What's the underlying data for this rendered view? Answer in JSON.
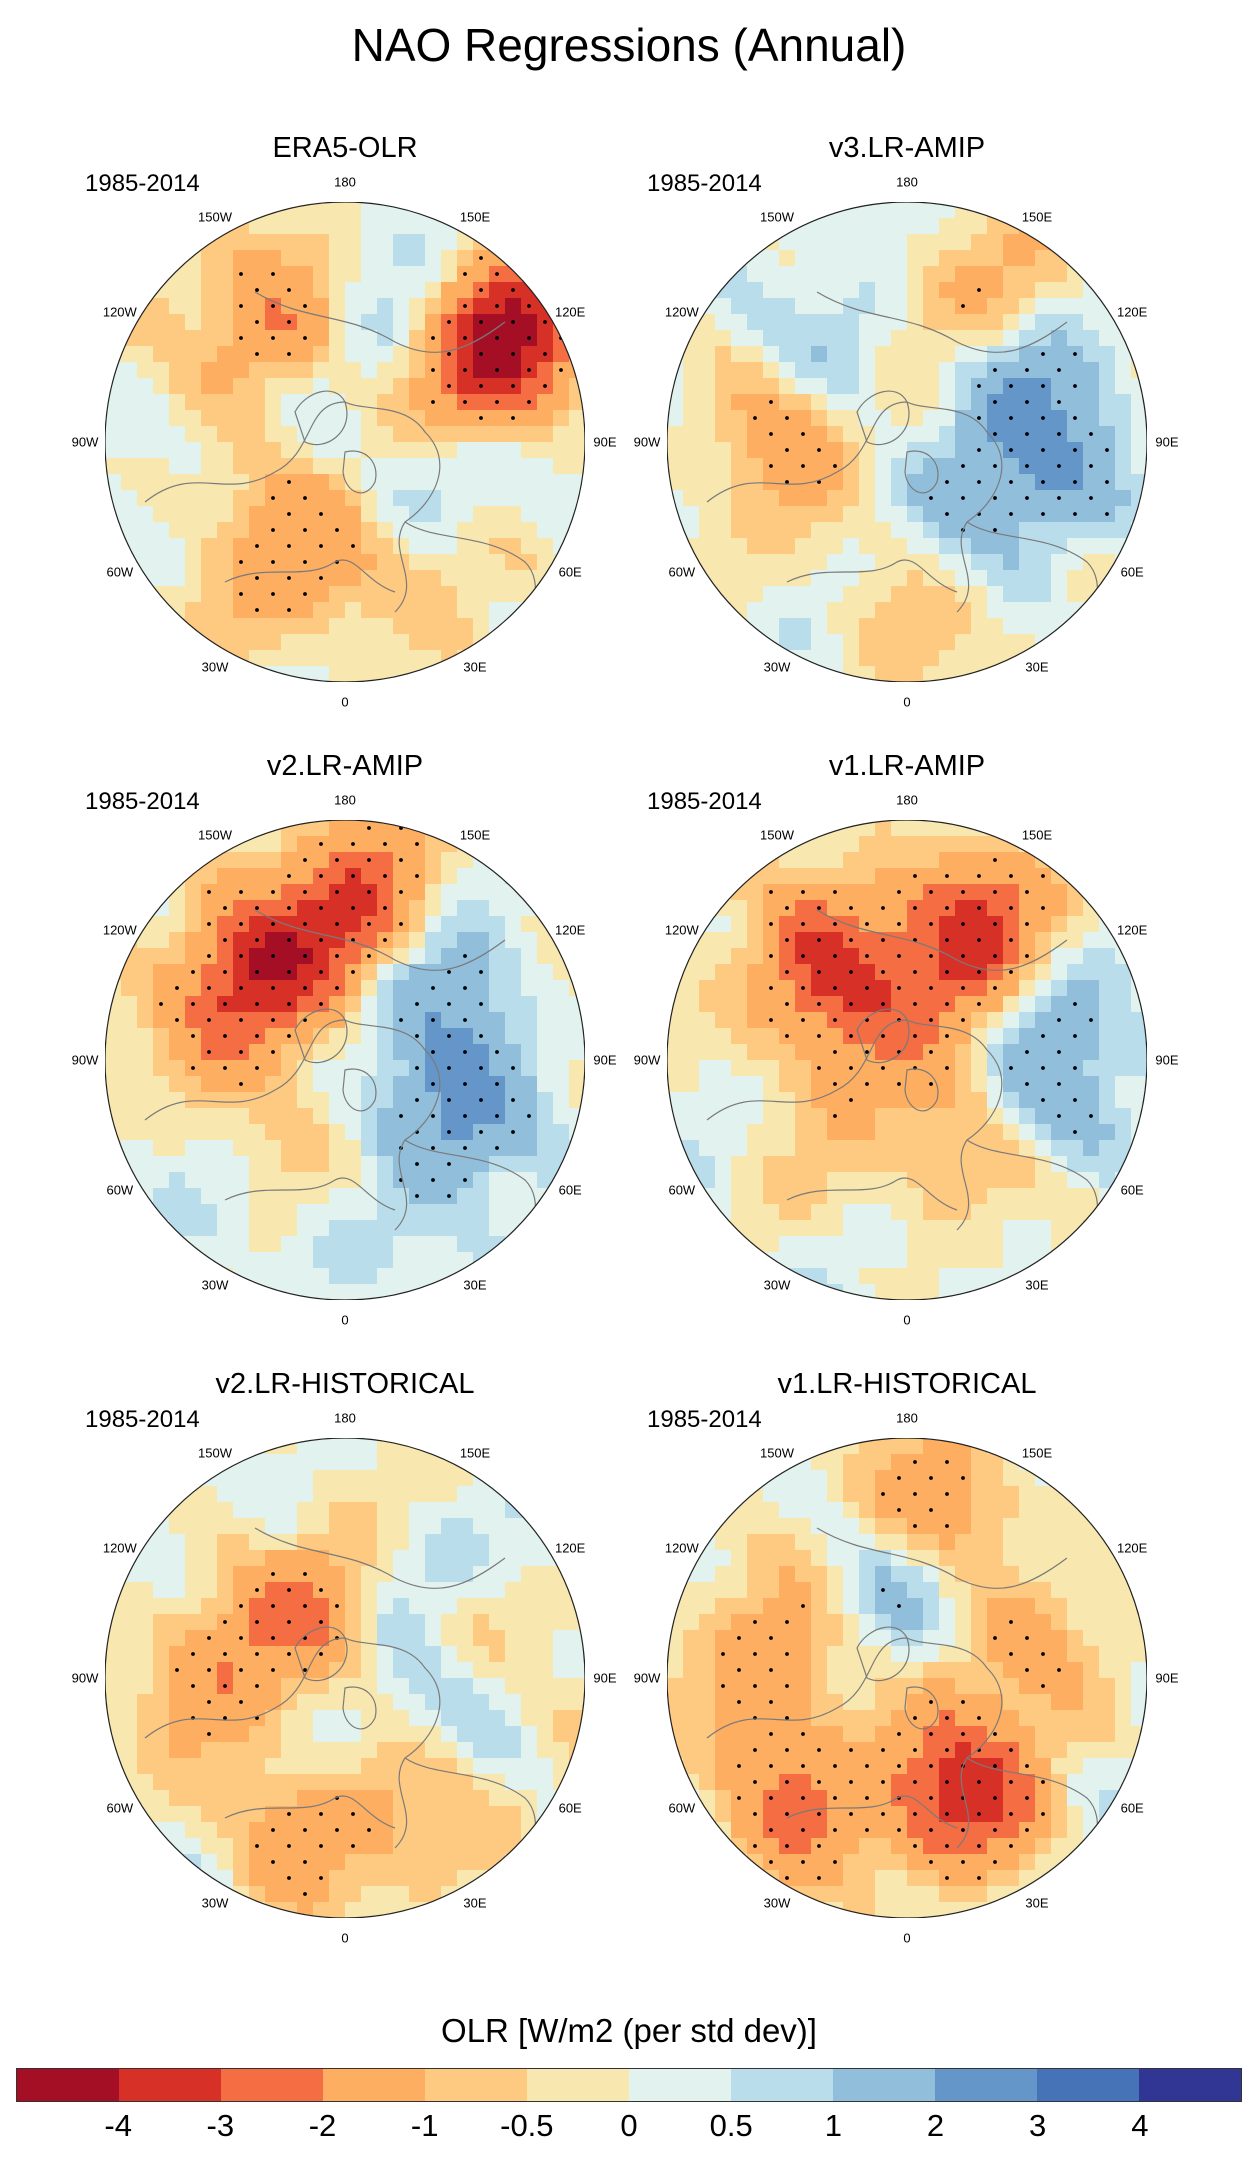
{
  "figure": {
    "title": "NAO Regressions (Annual)",
    "period": "1985-2014"
  },
  "panels": [
    {
      "id": "era5",
      "title": "ERA5-OLR",
      "period": "1985-2014"
    },
    {
      "id": "v3amip",
      "title": "v3.LR-AMIP",
      "period": "1985-2014"
    },
    {
      "id": "v2amip",
      "title": "v2.LR-AMIP",
      "period": "1985-2014"
    },
    {
      "id": "v1amip",
      "title": "v1.LR-AMIP",
      "period": "1985-2014"
    },
    {
      "id": "v2hist",
      "title": "v2.LR-HISTORICAL",
      "period": "1985-2014"
    },
    {
      "id": "v1hist",
      "title": "v1.LR-HISTORICAL",
      "period": "1985-2014"
    }
  ],
  "longitude_labels": [
    "180",
    "150E",
    "120E",
    "90E",
    "60E",
    "30E",
    "0",
    "30W",
    "60W",
    "90W",
    "120W",
    "150W"
  ],
  "colorbar": {
    "title": "OLR [W/m2 (per std dev)]",
    "ticks": [
      "-4",
      "-3",
      "-2",
      "-1",
      "-0.5",
      "0",
      "0.5",
      "1",
      "2",
      "3",
      "4"
    ],
    "colors": [
      "#a50f26",
      "#d73027",
      "#f46d43",
      "#fdae61",
      "#fec980",
      "#f8e8b0",
      "#e2f3ef",
      "#b9ddeb",
      "#91bfdb",
      "#6496c9",
      "#4672b8",
      "#313695"
    ]
  },
  "chart_data": {
    "type": "heatmap",
    "projection": "north polar stereographic",
    "variable": "OLR regression on NAO index",
    "units": "W/m2 (per std dev)",
    "levels": [
      -4,
      -3,
      -2,
      -1,
      -0.5,
      0,
      0.5,
      1,
      2,
      3,
      4
    ],
    "stippling": "statistically significant regions",
    "features": {
      "era5": [
        {
          "value": -2.2,
          "lon": 125,
          "lat": 22
        },
        {
          "value": -2.3,
          "lon": 128,
          "lat": 22
        },
        {
          "value": -1.6,
          "lon": 220,
          "lat": 40
        },
        {
          "value": -1.0,
          "lon": 120,
          "lat": 45
        },
        {
          "value": -1.0,
          "lon": 35,
          "lat": 35
        },
        {
          "value": 0.6,
          "lon": 235,
          "lat": 58
        },
        {
          "value": 1.1,
          "lon": 80,
          "lat": 55
        },
        {
          "value": 1.3,
          "lon": 150,
          "lat": 42
        },
        {
          "value": -0.9,
          "lon": 295,
          "lat": 50
        },
        {
          "value": -1.2,
          "lon": 340,
          "lat": 35
        },
        {
          "value": -0.8,
          "lon": 205,
          "lat": 30
        }
      ],
      "v3amip": [
        {
          "value": 1.4,
          "lon": 120,
          "lat": 45
        },
        {
          "value": -1.0,
          "lon": 160,
          "lat": 30
        },
        {
          "value": -1.6,
          "lon": 260,
          "lat": 40
        },
        {
          "value": 1.8,
          "lon": 80,
          "lat": 35
        },
        {
          "value": 1.2,
          "lon": 220,
          "lat": 45
        },
        {
          "value": -0.8,
          "lon": 350,
          "lat": 30
        },
        {
          "value": 0.7,
          "lon": 40,
          "lat": 50
        }
      ],
      "v2amip": [
        {
          "value": -3.0,
          "lon": 225,
          "lat": 40
        },
        {
          "value": -3.0,
          "lon": 178,
          "lat": 30
        },
        {
          "value": 1.6,
          "lon": 75,
          "lat": 55
        },
        {
          "value": 1.6,
          "lon": 130,
          "lat": 40
        },
        {
          "value": 1.3,
          "lon": 60,
          "lat": 45
        },
        {
          "value": 1.0,
          "lon": 350,
          "lat": 30
        },
        {
          "value": -0.9,
          "lon": 320,
          "lat": 55
        },
        {
          "value": -0.9,
          "lon": 250,
          "lat": 45
        }
      ],
      "v1amip": [
        {
          "value": -3.1,
          "lon": 220,
          "lat": 40
        },
        {
          "value": -2.5,
          "lon": 160,
          "lat": 30
        },
        {
          "value": 1.3,
          "lon": 80,
          "lat": 40
        },
        {
          "value": -1.7,
          "lon": 150,
          "lat": 50
        },
        {
          "value": -1.5,
          "lon": 30,
          "lat": 55
        },
        {
          "value": 1.4,
          "lon": 120,
          "lat": 35
        },
        {
          "value": -1.0,
          "lon": 250,
          "lat": 60
        }
      ],
      "v2hist": [
        {
          "value": 1.5,
          "lon": 150,
          "lat": 45
        },
        {
          "value": 1.0,
          "lon": 80,
          "lat": 50
        },
        {
          "value": -1.3,
          "lon": 120,
          "lat": 45
        },
        {
          "value": -1.0,
          "lon": 25,
          "lat": 40
        },
        {
          "value": -1.5,
          "lon": 260,
          "lat": 40
        },
        {
          "value": -1.7,
          "lon": 200,
          "lat": 55
        },
        {
          "value": -1.5,
          "lon": 335,
          "lat": 30
        }
      ],
      "v1hist": [
        {
          "value": -1.3,
          "lon": 115,
          "lat": 45
        },
        {
          "value": -1.6,
          "lon": 35,
          "lat": 50
        },
        {
          "value": -1.7,
          "lon": 260,
          "lat": 40
        },
        {
          "value": -2.1,
          "lon": 165,
          "lat": 25
        },
        {
          "value": -2.2,
          "lon": 310,
          "lat": 25
        },
        {
          "value": -2.1,
          "lon": 20,
          "lat": 40
        },
        {
          "value": 1.0,
          "lon": 140,
          "lat": 40
        },
        {
          "value": 0.8,
          "lon": 200,
          "lat": 50
        }
      ]
    }
  }
}
